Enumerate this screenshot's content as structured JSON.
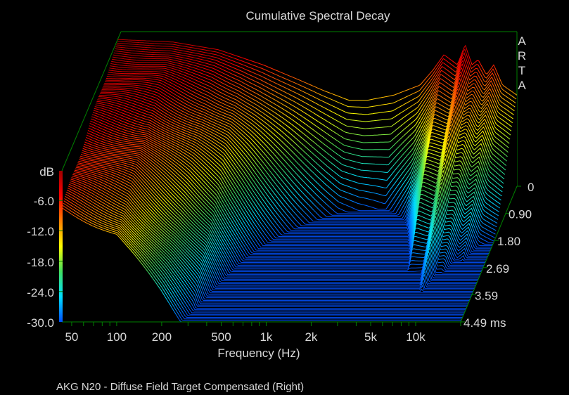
{
  "chart_data": {
    "type": "waterfall",
    "title": "Cumulative Spectral Decay",
    "brand": [
      "A",
      "R",
      "T",
      "A"
    ],
    "xlabel": "Frequency (Hz)",
    "x_scale": "log",
    "x_ticks": [
      "50",
      "100",
      "200",
      "500",
      "1k",
      "2k",
      "5k",
      "10k"
    ],
    "x_tick_values": [
      50,
      100,
      200,
      500,
      1000,
      2000,
      5000,
      10000
    ],
    "xlim": [
      43,
      20000
    ],
    "zlabel": "dB",
    "z_ticks": [
      "-6.0",
      "-12.0",
      "-18.0",
      "-24.0",
      "-30.0"
    ],
    "zlim": [
      -30,
      0
    ],
    "time_ticks": [
      "0",
      "0.90",
      "1.80",
      "2.69",
      "3.59",
      "4.49 ms"
    ],
    "time_range_ms": [
      0,
      4.49
    ],
    "slices": 90,
    "initial_response": {
      "freq_hz": [
        43,
        100,
        200,
        400,
        700,
        1000,
        1500,
        2000,
        3000,
        4500,
        5500,
        6500,
        8000,
        9000,
        10000,
        11000,
        12500,
        14000,
        16000,
        20000
      ],
      "db": [
        -1,
        -1.5,
        -3,
        -6,
        -9,
        -11,
        -13,
        -13,
        -12,
        -10,
        -7,
        -4,
        -6,
        -2,
        -6,
        -5,
        -8,
        -6,
        -10,
        -12
      ]
    },
    "decay_rate_db_per_ms": {
      "freq_hz": [
        43,
        100,
        300,
        1000,
        3000,
        6500,
        9000,
        11500,
        15000
      ],
      "rate": [
        1.45,
        2.5,
        6,
        15,
        25,
        9,
        8,
        9,
        10
      ]
    },
    "colorbar": [
      "#0050ff",
      "#00e0ff",
      "#40e060",
      "#ffff00",
      "#ff8000",
      "#ff0000",
      "#a00000"
    ],
    "footer": "AKG N20 - Diffuse Field Target Compensated (Right)"
  }
}
